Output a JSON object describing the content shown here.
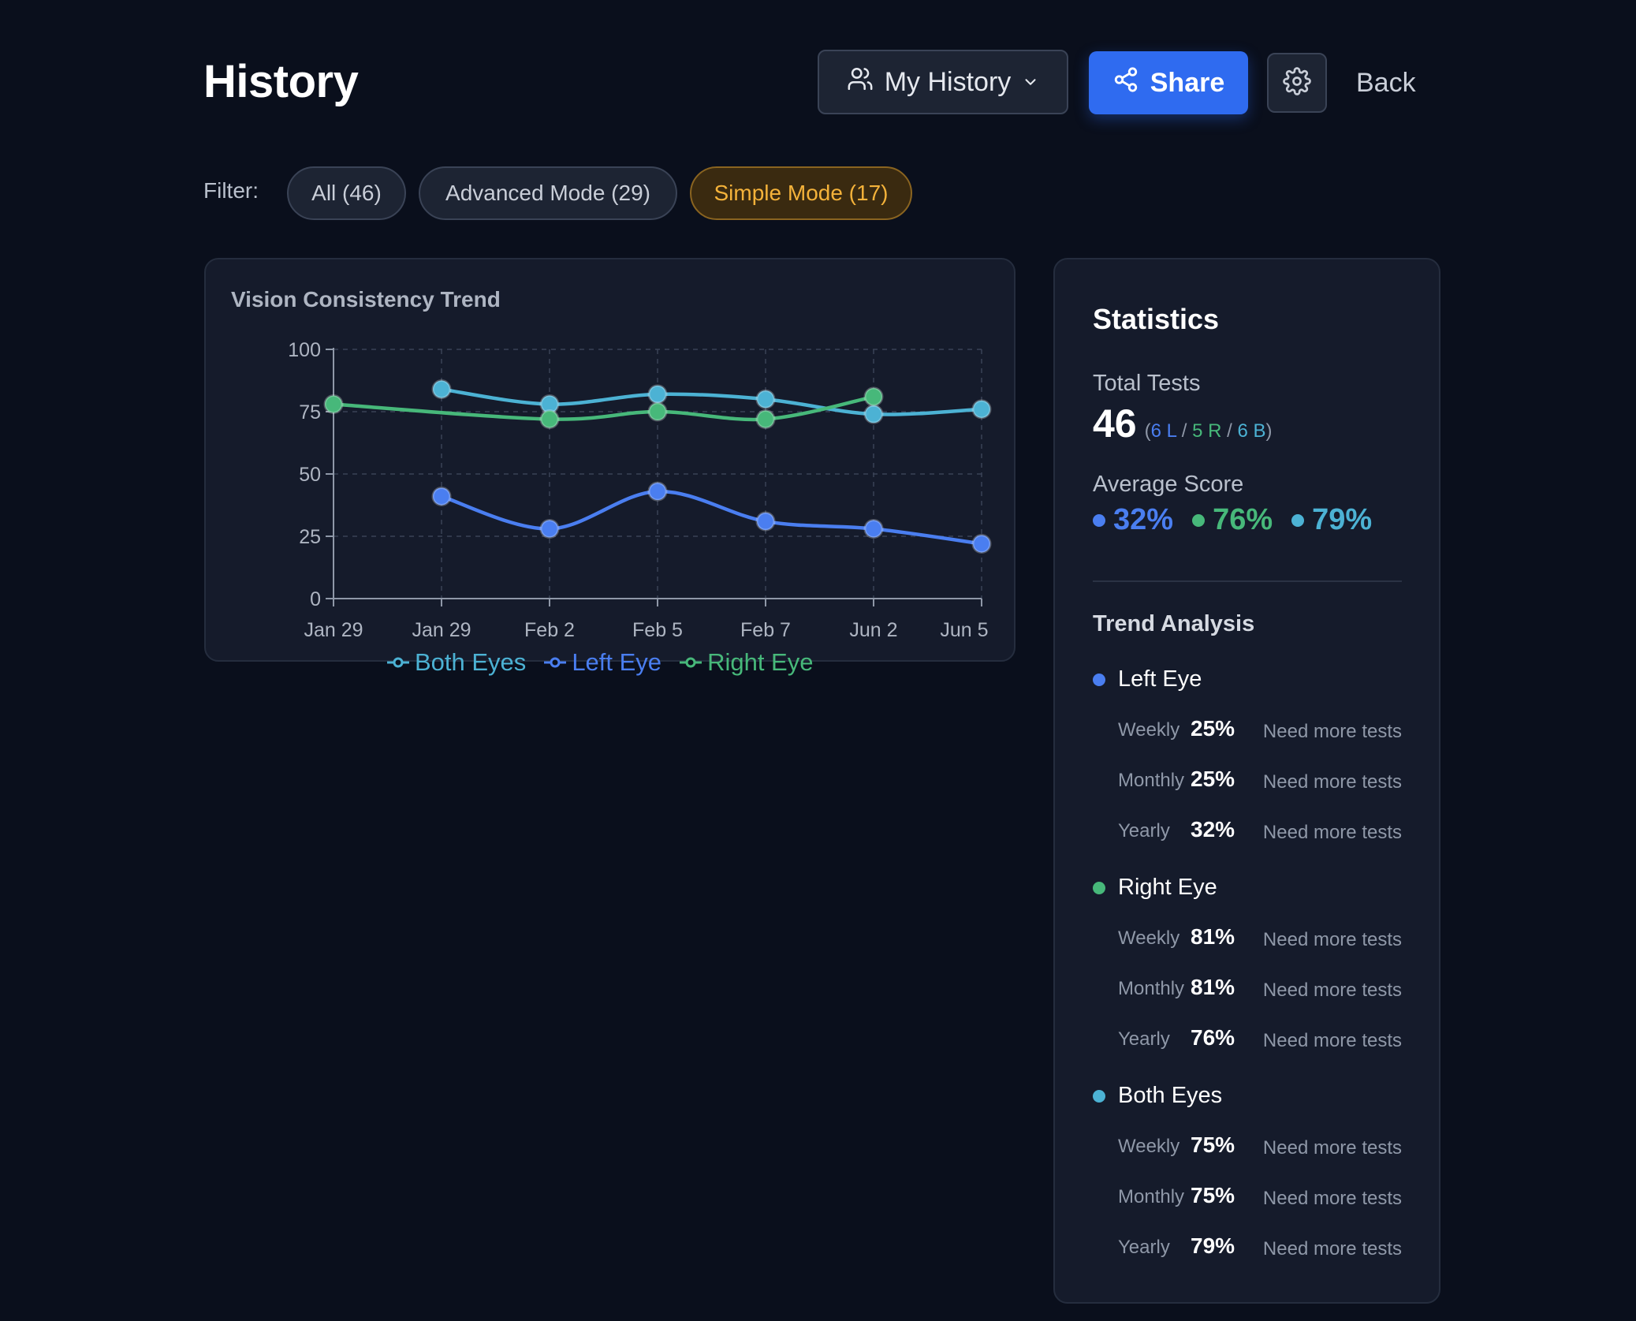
{
  "header": {
    "title": "History",
    "history_select": "My History",
    "share_label": "Share",
    "back_label": "Back"
  },
  "filter": {
    "label": "Filter:",
    "chips": [
      {
        "label": "All (46)",
        "active": false
      },
      {
        "label": "Advanced Mode (29)",
        "active": false
      },
      {
        "label": "Simple Mode (17)",
        "active": true
      }
    ]
  },
  "chart_card": {
    "title": "Vision Consistency Trend"
  },
  "chart_data": {
    "type": "line",
    "x": [
      "Jan 29",
      "Jan 29",
      "Feb 2",
      "Feb 5",
      "Feb 7",
      "Jun 2",
      "Jun 5"
    ],
    "ylim": [
      0,
      100
    ],
    "yticks": [
      0,
      25,
      50,
      75,
      100
    ],
    "grid": true,
    "legend": "bottom",
    "series": [
      {
        "name": "Both Eyes",
        "color": "#4cb2d4",
        "values": [
          null,
          84,
          78,
          82,
          80,
          74,
          76
        ]
      },
      {
        "name": "Left Eye",
        "color": "#4a7ef0",
        "values": [
          null,
          41,
          28,
          43,
          31,
          28,
          22
        ]
      },
      {
        "name": "Right Eye",
        "color": "#47b87a",
        "values": [
          78,
          null,
          72,
          75,
          72,
          81,
          null
        ]
      }
    ]
  },
  "stats": {
    "title": "Statistics",
    "total_label": "Total Tests",
    "total": "46",
    "breakdown": {
      "open": "(",
      "l": "6 L",
      "r": "5 R",
      "b": "6 B",
      "sep": "/",
      "close": ")"
    },
    "avg_label": "Average Score",
    "averages": [
      {
        "value": "32%",
        "color": "#4a7ef0"
      },
      {
        "value": "76%",
        "color": "#47b87a"
      },
      {
        "value": "79%",
        "color": "#4cb2d4"
      }
    ],
    "trend_title": "Trend Analysis",
    "eyes": [
      {
        "name": "Left Eye",
        "color": "#4a7ef0",
        "rows": [
          {
            "period": "Weekly",
            "pct": "25%",
            "note": "Need more tests"
          },
          {
            "period": "Monthly",
            "pct": "25%",
            "note": "Need more tests"
          },
          {
            "period": "Yearly",
            "pct": "32%",
            "note": "Need more tests"
          }
        ]
      },
      {
        "name": "Right Eye",
        "color": "#47b87a",
        "rows": [
          {
            "period": "Weekly",
            "pct": "81%",
            "note": "Need more tests"
          },
          {
            "period": "Monthly",
            "pct": "81%",
            "note": "Need more tests"
          },
          {
            "period": "Yearly",
            "pct": "76%",
            "note": "Need more tests"
          }
        ]
      },
      {
        "name": "Both Eyes",
        "color": "#4cb2d4",
        "rows": [
          {
            "period": "Weekly",
            "pct": "75%",
            "note": "Need more tests"
          },
          {
            "period": "Monthly",
            "pct": "75%",
            "note": "Need more tests"
          },
          {
            "period": "Yearly",
            "pct": "79%",
            "note": "Need more tests"
          }
        ]
      }
    ]
  }
}
